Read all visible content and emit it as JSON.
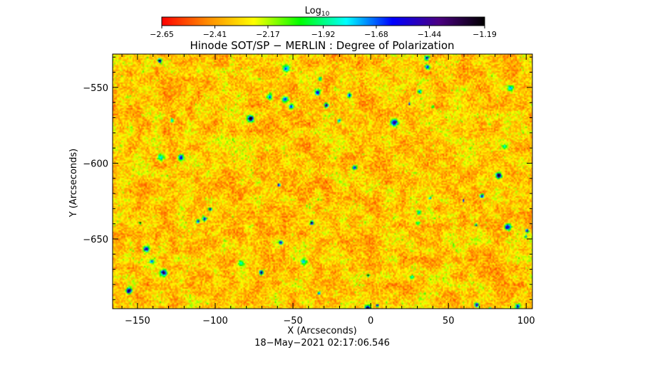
{
  "chart_data": {
    "type": "heatmap",
    "title": "Hinode SOT/SP − MERLIN : Degree of Polarization",
    "subtitle": "18−May−2021 02:17:06.546",
    "xlabel": "X (Arcseconds)",
    "ylabel": "Y (Arcseconds)",
    "xlim": [
      -166,
      104
    ],
    "ylim": [
      -696,
      -528
    ],
    "x_ticks": [
      -150,
      -100,
      -50,
      0,
      50,
      100
    ],
    "x_tick_labels": [
      "−150",
      "−100",
      "−50",
      "0",
      "50",
      "100"
    ],
    "y_ticks": [
      -550,
      -600,
      -650
    ],
    "y_tick_labels": [
      "−550",
      "−600",
      "−650"
    ],
    "colorbar": {
      "label_main": "Log",
      "label_sub": "10",
      "range": [
        -2.65,
        -1.19
      ],
      "ticks": [
        -2.65,
        -2.41,
        -2.17,
        -1.92,
        -1.68,
        -1.44,
        -1.19
      ],
      "tick_labels": [
        "−2.65",
        "−2.41",
        "−2.17",
        "−1.92",
        "−1.68",
        "−1.44",
        "−1.19"
      ],
      "colors": [
        "#ff0000",
        "#ff8c00",
        "#ffff00",
        "#00ff00",
        "#00ffff",
        "#0000ff",
        "#4b0082",
        "#000000"
      ]
    },
    "value_distribution": {
      "background": "red-orange (≈−2.65 to −2.41)",
      "mottling": "yellow (≈−2.17)",
      "features": "scattered green/cyan/blue/black knots (≈−1.9 to −1.2)"
    },
    "grid": false
  }
}
